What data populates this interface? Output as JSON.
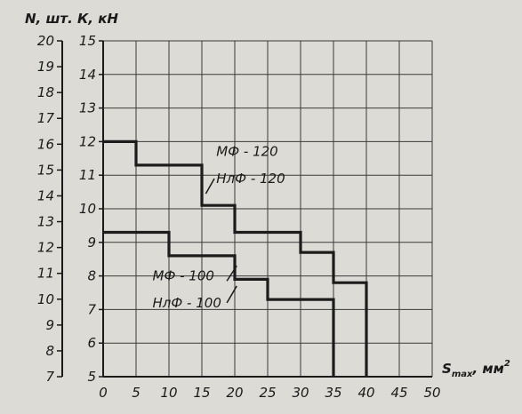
{
  "chart_data": {
    "type": "line",
    "ylabel_outer": "N, шт. К, кН",
    "xlabel": "S",
    "xlabel_sub": "max",
    "xlabel_unit": ", мм",
    "xlabel_sup": "2",
    "xlim": [
      0,
      50
    ],
    "x_ticks": [
      "0",
      "5",
      "10",
      "15",
      "20",
      "25",
      "30",
      "35",
      "40",
      "45",
      "50"
    ],
    "y_outer_lim": [
      7,
      20
    ],
    "y_outer_ticks": [
      "7",
      "8",
      "9",
      "10",
      "11",
      "12",
      "13",
      "14",
      "15",
      "16",
      "17",
      "18",
      "19",
      "20"
    ],
    "y_inner_lim": [
      5,
      15
    ],
    "y_inner_ticks": [
      "5",
      "6",
      "7",
      "8",
      "9",
      "10",
      "11",
      "12",
      "13",
      "14",
      "15"
    ],
    "series": [
      {
        "name": "МФ - 120 / НлФ - 120",
        "axis": "inner",
        "x": [
          0,
          5,
          5,
          15,
          15,
          20,
          20,
          30,
          30,
          35,
          35,
          40,
          40
        ],
        "y": [
          12,
          12,
          11.3,
          11.3,
          10.1,
          10.1,
          9.3,
          9.3,
          8.7,
          8.7,
          7.8,
          7.8,
          5
        ]
      },
      {
        "name": "МФ - 100 / НлФ - 100",
        "axis": "inner",
        "x": [
          0,
          10,
          10,
          20,
          20,
          25,
          25,
          35,
          35
        ],
        "y": [
          9.3,
          9.3,
          8.6,
          8.6,
          7.9,
          7.9,
          7.3,
          7.3,
          5
        ]
      }
    ],
    "annotations": [
      {
        "text": "МФ - 120",
        "target": "series-0"
      },
      {
        "text": "НлФ - 120",
        "target": "series-0"
      },
      {
        "text": "МФ - 100",
        "target": "series-1"
      },
      {
        "text": "НлФ - 100",
        "target": "series-1"
      }
    ],
    "grid": true
  }
}
